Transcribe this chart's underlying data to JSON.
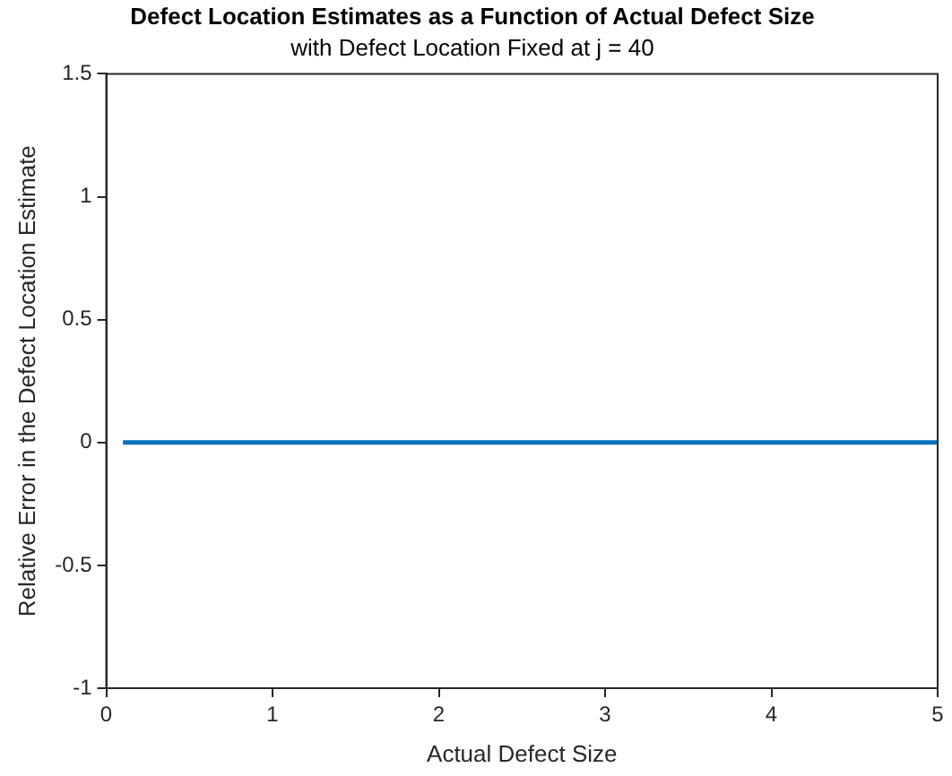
{
  "chart_data": {
    "type": "line",
    "title": "Defect Location Estimates as a Function of Actual Defect Size",
    "subtitle": "with Defect Location Fixed at j = 40",
    "xlabel": "Actual Defect Size",
    "ylabel": "Relative Error in the Defect Location Estimate",
    "x": [
      0.1,
      5
    ],
    "series": [
      {
        "color": "#0072bd",
        "values": [
          0,
          0
        ]
      }
    ],
    "xlim": [
      0,
      5
    ],
    "xticks": [
      0,
      1,
      2,
      3,
      4,
      5
    ],
    "ylim": [
      -1,
      1.5
    ],
    "yticks": [
      -1,
      -0.5,
      0,
      0.5,
      1,
      1.5
    ],
    "grid": false,
    "legend": false,
    "marker": "none",
    "line_style": "solid"
  }
}
